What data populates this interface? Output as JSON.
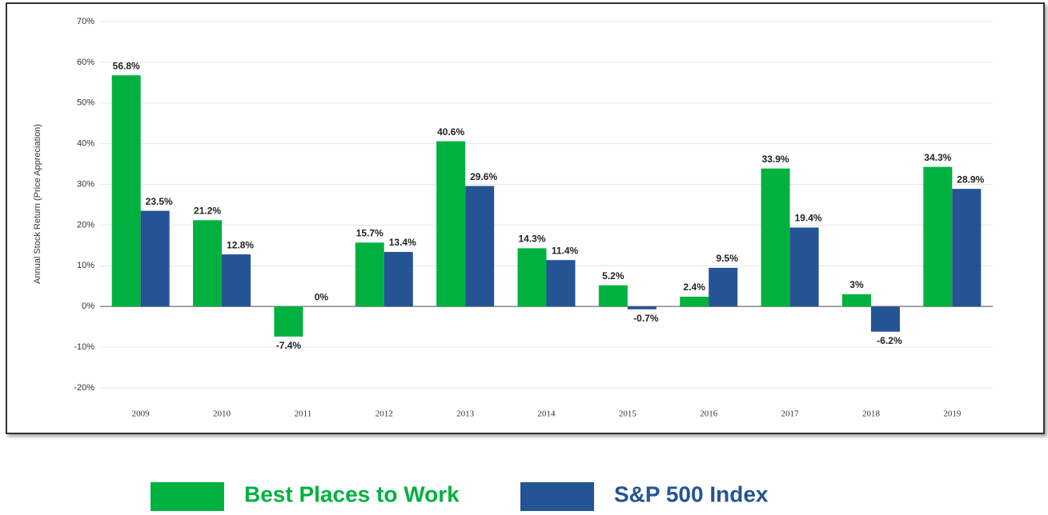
{
  "chart_data": {
    "type": "bar",
    "y_label": "Annual Stock Return (Price Appreciation)",
    "categories": [
      "2009",
      "2010",
      "2011",
      "2012",
      "2013",
      "2014",
      "2015",
      "2016",
      "2017",
      "2018",
      "2019"
    ],
    "series": [
      {
        "name": "Best Places to Work",
        "color": "#00b140",
        "values": [
          56.8,
          21.2,
          -7.4,
          15.7,
          40.6,
          14.3,
          5.2,
          2.4,
          33.9,
          3,
          34.3
        ],
        "value_labels": [
          "56.8%",
          "21.2%",
          "-7.4%",
          "15.7%",
          "40.6%",
          "14.3%",
          "5.2%",
          "2.4%",
          "33.9%",
          "3%",
          "34.3%"
        ]
      },
      {
        "name": "S&P 500 Index",
        "color": "#245494",
        "values": [
          23.5,
          12.8,
          0,
          13.4,
          29.6,
          11.4,
          -0.7,
          9.5,
          19.4,
          -6.2,
          28.9
        ],
        "value_labels": [
          "23.5%",
          "12.8%",
          "0%",
          "13.4%",
          "29.6%",
          "11.4%",
          "-0.7%",
          "9.5%",
          "19.4%",
          "-6.2%",
          "28.9%"
        ]
      }
    ],
    "ylim": [
      -20,
      70
    ],
    "yticks": [
      {
        "value": -20,
        "label": "-20%"
      },
      {
        "value": -10,
        "label": "-10%"
      },
      {
        "value": 0,
        "label": "0%"
      },
      {
        "value": 10,
        "label": "10%"
      },
      {
        "value": 20,
        "label": "20%"
      },
      {
        "value": 30,
        "label": "30%"
      },
      {
        "value": 40,
        "label": "40%"
      },
      {
        "value": 50,
        "label": "50%"
      },
      {
        "value": 60,
        "label": "60%"
      },
      {
        "value": 70,
        "label": "70%"
      }
    ],
    "grid": true,
    "legend": "bottom"
  }
}
